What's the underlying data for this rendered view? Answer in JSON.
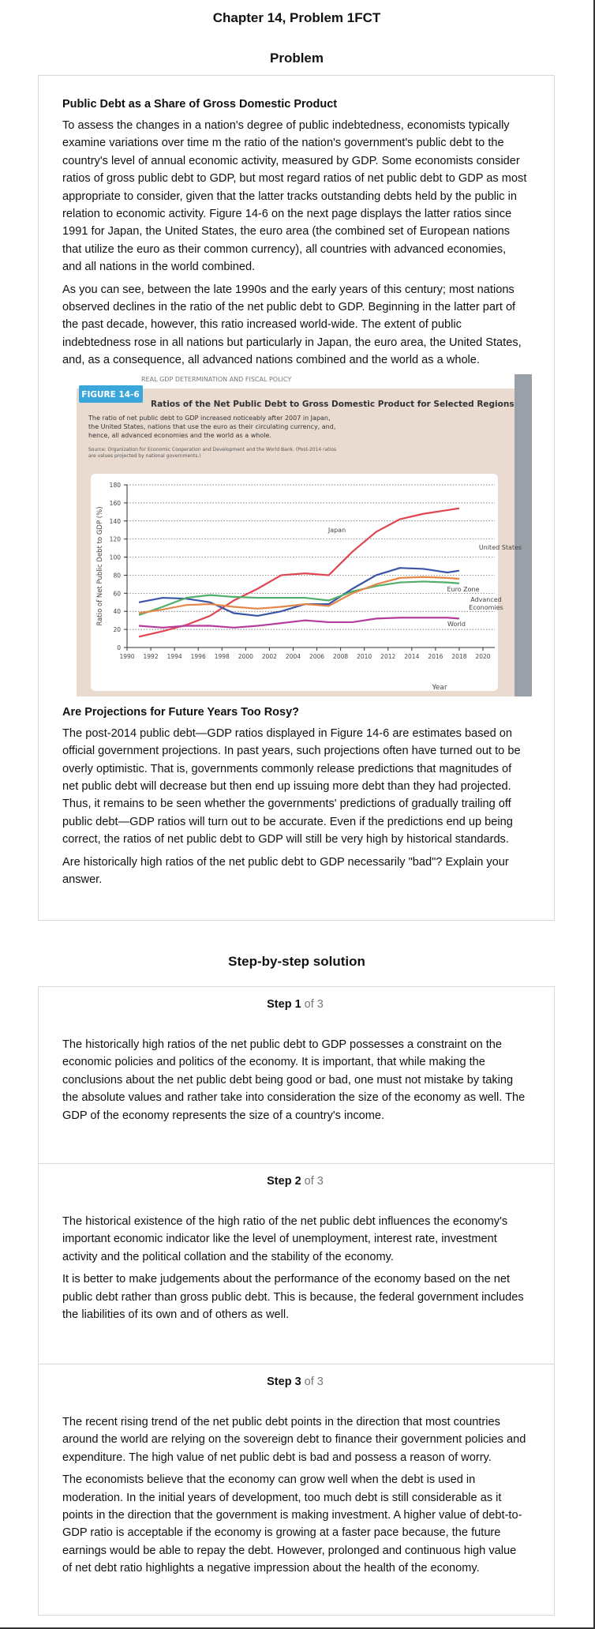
{
  "header": {
    "title": "Chapter 14, Problem 1FCT"
  },
  "problem": {
    "heading": "Problem",
    "subtitle": "Public Debt as a Share of Gross Domestic Product",
    "paragraphs": [
      "To assess the changes in a nation's degree of public indebtedness, economists typically examine variations over time m the ratio of the nation's government's public debt to the country's level of annual economic activity, measured by GDP. Some economists consider ratios of gross public debt to GDP, but most regard ratios of net public debt to GDP as most appropriate to consider, given that the latter tracks outstanding debts held by the public in relation to economic activity. Figure 14-6 on the next page displays the latter ratios since 1991 for Japan, the United States, the euro area (the combined set of European nations that utilize the euro as their common currency), all countries with advanced economies, and all nations in the world combined.",
      "As you can see, between the late 1990s and the early years of this century; most nations observed declines in the ratio of the net public debt to GDP. Beginning in the latter part of the past decade, however, this ratio increased world-wide. The extent of public indebtedness rose in all nations but particularly in Japan, the euro area, the United States, and, as a consequence, all advanced nations combined and the world as a whole."
    ],
    "subtitle2": "Are Projections for Future Years Too Rosy?",
    "paragraphs2": [
      "The post-2014 public debt—GDP ratios displayed in Figure 14-6 are estimates based on official government projections. In past years, such projections often have turned out to be overly optimistic. That is, governments commonly release predictions that magnitudes of net public debt will decrease but then end up issuing more debt than they had projected. Thus, it remains to be seen whether the governments' predictions of gradually trailing off public debt—GDP ratios will turn out to be accurate. Even if the predictions end up being correct, the ratios of net public debt to GDP will still be very high by historical standards.",
      "Are historically high ratios of the net public debt to GDP necessarily \"bad\"? Explain your answer."
    ]
  },
  "chart_data": {
    "type": "line",
    "page_header": "REAL GDP DETERMINATION AND FISCAL POLICY",
    "figure_label": "FIGURE 14-6",
    "title": "Ratios of the Net Public Debt to Gross Domestic Product for Selected Regions",
    "subtitle": "The ratio of net public debt to GDP increased noticeably after 2007 in Japan, the United States, nations that use the euro as their circulating currency, and, hence, all advanced economies and the world as a whole.",
    "note": "Source: Organization for Economic Cooperation and Development and the World Bank. (Post-2014 ratios are values projected by national governments.)",
    "x_label": "Year",
    "y_label": "Ratio of Net Public Debt to GDP (%)",
    "x": [
      1991,
      1993,
      1995,
      1997,
      1999,
      2001,
      2003,
      2005,
      2007,
      2009,
      2011,
      2013,
      2015,
      2017,
      2018
    ],
    "series": [
      {
        "name": "Japan",
        "color": "#e0464f",
        "values": [
          12,
          18,
          25,
          35,
          52,
          65,
          80,
          82,
          80,
          106,
          128,
          142,
          148,
          152,
          154
        ]
      },
      {
        "name": "United States",
        "color": "#3a55a8",
        "values": [
          50,
          55,
          54,
          50,
          38,
          35,
          40,
          48,
          48,
          65,
          80,
          88,
          87,
          83,
          85
        ]
      },
      {
        "name": "Euro Zone",
        "color": "#4fae6a",
        "values": [
          36,
          45,
          55,
          58,
          56,
          55,
          55,
          55,
          52,
          62,
          68,
          72,
          73,
          72,
          71
        ]
      },
      {
        "name": "Advanced Economies",
        "color": "#e4874a",
        "values": [
          38,
          42,
          47,
          48,
          45,
          43,
          45,
          48,
          46,
          60,
          70,
          77,
          78,
          77,
          76
        ]
      },
      {
        "name": "World",
        "color": "#b53c9c",
        "values": [
          24,
          22,
          24,
          24,
          22,
          24,
          27,
          30,
          28,
          28,
          32,
          33,
          33,
          33,
          32
        ]
      }
    ],
    "xlim": [
      1990,
      2021
    ],
    "xticks": [
      1990,
      1992,
      1994,
      1996,
      1998,
      2000,
      2002,
      2004,
      2006,
      2008,
      2010,
      2012,
      2014,
      2016,
      2018,
      2020
    ],
    "ylim": [
      0,
      180
    ],
    "yticks": [
      0,
      20,
      40,
      60,
      80,
      100,
      120,
      140,
      160,
      180
    ],
    "grid": true
  },
  "solution": {
    "heading": "Step-by-step solution",
    "steps": [
      {
        "label": "Step 1",
        "of": "of 3",
        "paragraphs": [
          "The historically high ratios of the net public debt to GDP possesses a constraint on the economic policies and politics of the economy. It is important, that while making the conclusions about the net public debt being good or bad, one must not mistake by taking the absolute values and rather take into consideration the size of the economy as well. The GDP of the economy represents the size of a country's income."
        ]
      },
      {
        "label": "Step 2",
        "of": "of 3",
        "paragraphs": [
          "The historical existence of the high ratio of the net public debt influences the economy's important economic indicator like the level of unemployment, interest rate, investment activity and the political collation and the stability of the economy.",
          "It is better to make judgements about the performance of the economy based on the net public debt rather than gross public debt. This is because, the federal government includes the liabilities of its own and of others as well."
        ]
      },
      {
        "label": "Step 3",
        "of": "of 3",
        "paragraphs": [
          "The recent rising trend of the net public debt points in the direction that most countries around the world are relying on the sovereign debt to finance their government policies and expenditure. The high value of net public debt is bad and possess a reason of worry.",
          "The economists believe that the economy can grow well when the debt is used in moderation. In the initial years of development, too much debt is still considerable as it points in the direction that the government is making investment. A higher value of debt-to-GDP ratio is acceptable if the economy is growing at a faster pace because, the future earnings would be able to repay the debt. However, prolonged and continuous high value of net debt ratio highlights a negative impression about the health of the economy."
        ]
      }
    ]
  }
}
